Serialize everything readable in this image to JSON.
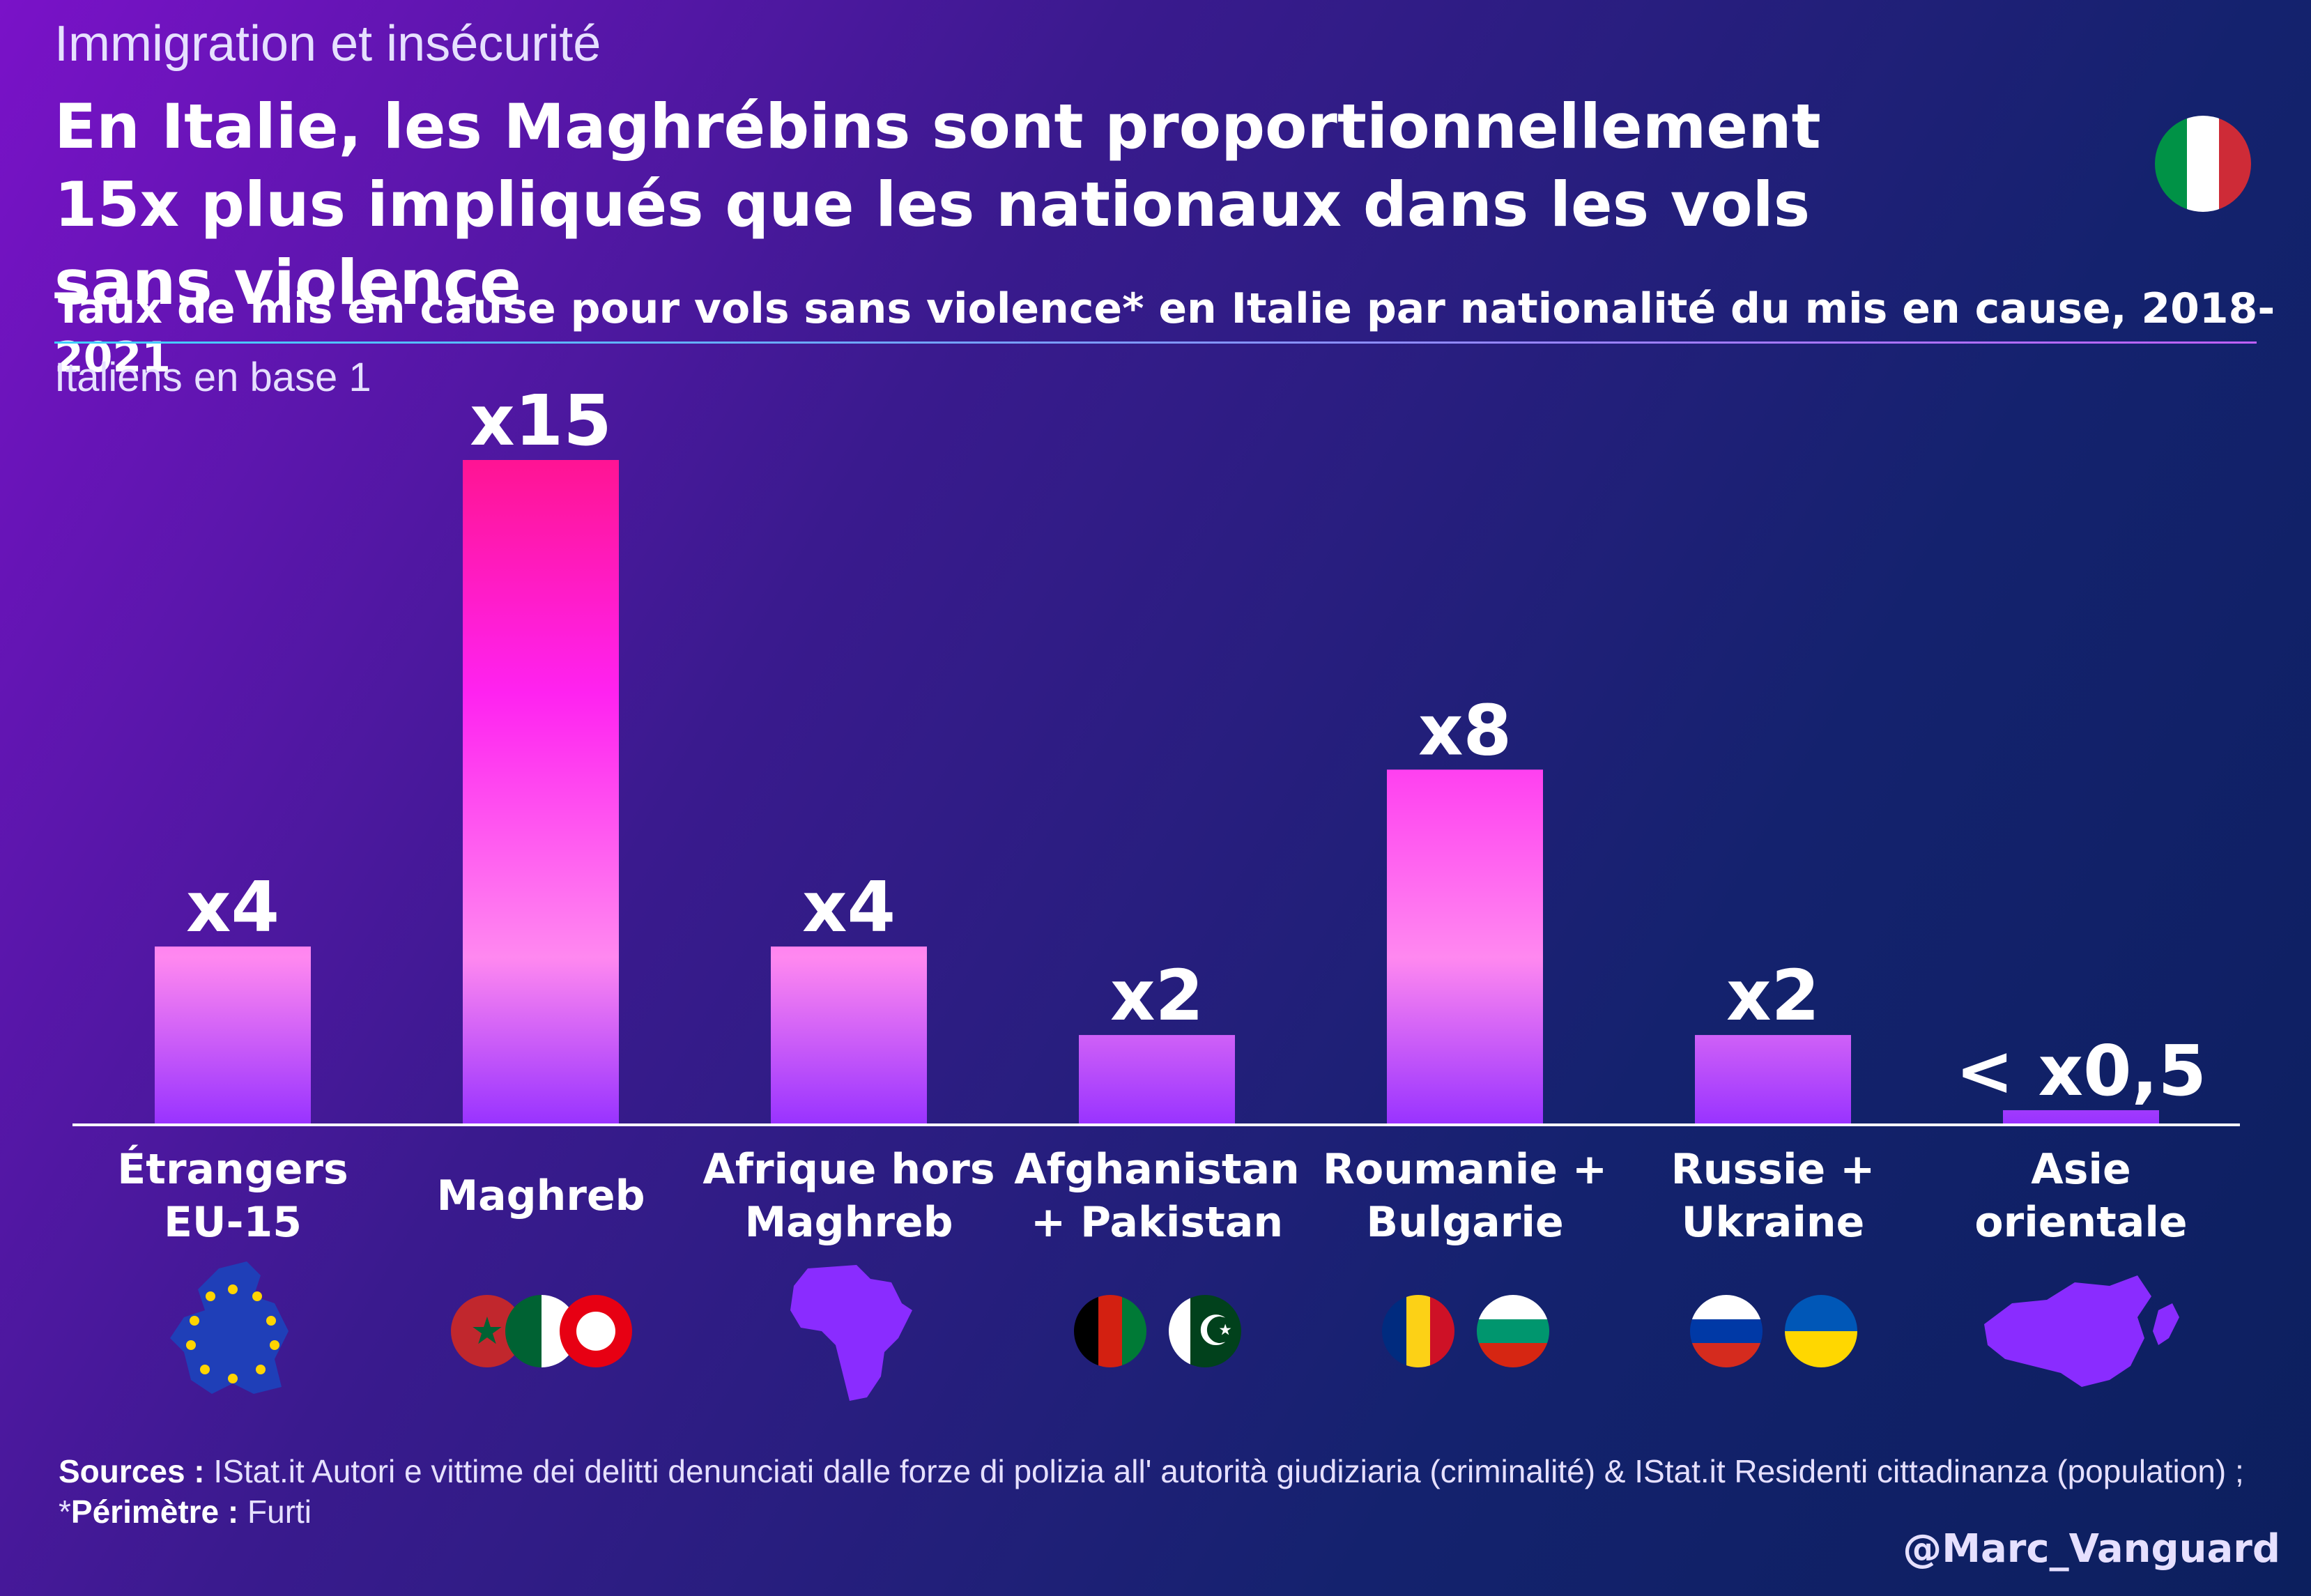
{
  "header": {
    "kicker": "Immigration et insécurité",
    "headline": "En Italie, les Maghrébins sont proportionnellement 15x plus impliqués que les nationaux dans les vols sans violence",
    "flag_icon": "italy-flag-icon"
  },
  "subtitle": "Taux de mis en cause pour vols sans violence* en Italie par nationalité du mis en cause, 2018-2021",
  "base_note": "Italiens en base 1",
  "chart_data": {
    "type": "bar",
    "categories": [
      "Étrangers EU-15",
      "Maghreb",
      "Afrique hors Maghreb",
      "Afghanistan + Pakistan",
      "Roumanie + Bulgarie",
      "Russie + Ukraine",
      "Asie orientale"
    ],
    "values": [
      4,
      15,
      4,
      2,
      8,
      2,
      0.3
    ],
    "value_labels": [
      "x4",
      "x15",
      "x4",
      "x2",
      "x8",
      "x2",
      "< x0,5"
    ],
    "ylim": [
      0,
      15
    ],
    "grid": false,
    "title": "",
    "xlabel": "",
    "ylabel": ""
  },
  "category_labels": [
    [
      "Étrangers",
      "EU-15"
    ],
    [
      "Maghreb"
    ],
    [
      "Afrique hors",
      "Maghreb"
    ],
    [
      "Afghanistan",
      "+ Pakistan"
    ],
    [
      "Roumanie +",
      "Bulgarie"
    ],
    [
      "Russie +",
      "Ukraine"
    ],
    [
      "Asie",
      "orientale"
    ]
  ],
  "icons": [
    "eu-map-icon",
    "maghreb-flags-icon",
    "africa-map-icon",
    "afghanistan-pakistan-flags-icon",
    "romania-bulgaria-flags-icon",
    "russia-ukraine-flags-icon",
    "east-asia-map-icon"
  ],
  "colors": {
    "bar_top": "#ff1493",
    "bar_mid": "#ff77ee",
    "bar_bottom": "#9933ff",
    "map_purple": "#8a2cff",
    "eu_blue": "#1f3fb8"
  },
  "footer": {
    "sources_label": "Sources :",
    "sources_text": " IStat.it Autori e vittime dei delitti denunciati dalle forze di polizia all' autorità giudiziaria (criminalité) & IStat.it Residenti cittadinanza (population) ; *",
    "perimetre_label": "Périmètre :",
    "perimetre_text": " Furti",
    "handle": "@Marc_Vanguard"
  }
}
